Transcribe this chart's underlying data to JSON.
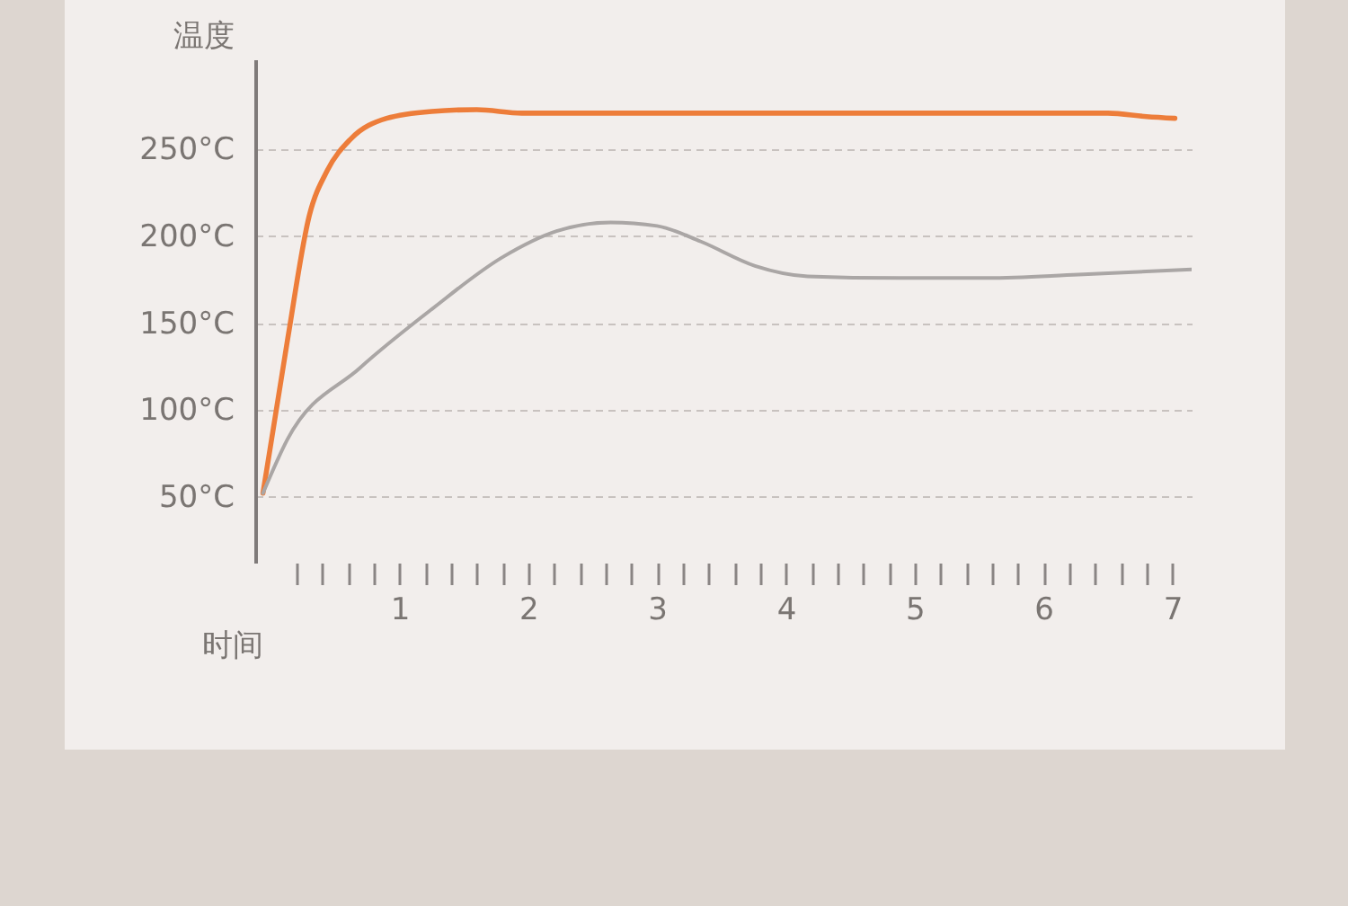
{
  "chart_data": {
    "type": "line",
    "xlabel": "时间",
    "ylabel": "温度",
    "xlim": [
      -0.12,
      7.15
    ],
    "ylim": [
      12,
      302
    ],
    "xticks": [
      {
        "value": 0.2,
        "label": null
      },
      {
        "value": 0.4,
        "label": null
      },
      {
        "value": 0.6,
        "label": null
      },
      {
        "value": 0.8,
        "label": null
      },
      1,
      {
        "value": 1.2,
        "label": null
      },
      {
        "value": 1.4,
        "label": null
      },
      {
        "value": 1.6,
        "label": null
      },
      {
        "value": 1.8,
        "label": null
      },
      2,
      {
        "value": 2.2,
        "label": null
      },
      {
        "value": 2.4,
        "label": null
      },
      {
        "value": 2.6,
        "label": null
      },
      {
        "value": 2.8,
        "label": null
      },
      3,
      {
        "value": 3.2,
        "label": null
      },
      {
        "value": 3.4,
        "label": null
      },
      {
        "value": 3.6,
        "label": null
      },
      {
        "value": 3.8,
        "label": null
      },
      4,
      {
        "value": 4.2,
        "label": null
      },
      {
        "value": 4.4,
        "label": null
      },
      {
        "value": 4.6,
        "label": null
      },
      {
        "value": 4.8,
        "label": null
      },
      5,
      {
        "value": 5.2,
        "label": null
      },
      {
        "value": 5.4,
        "label": null
      },
      {
        "value": 5.6,
        "label": null
      },
      {
        "value": 5.8,
        "label": null
      },
      6,
      {
        "value": 6.2,
        "label": null
      },
      {
        "value": 6.4,
        "label": null
      },
      {
        "value": 6.6,
        "label": null
      },
      {
        "value": 6.8,
        "label": null
      },
      7
    ],
    "yticks": [
      {
        "value": 50,
        "label": "50°C"
      },
      {
        "value": 100,
        "label": "100°C"
      },
      {
        "value": 150,
        "label": "150°C"
      },
      {
        "value": 200,
        "label": "200°C"
      },
      {
        "value": 250,
        "label": "250°C"
      }
    ],
    "grid": "y",
    "line_style": "solid",
    "series": [
      {
        "color": "#ed7d3a",
        "x": [
          -0.06,
          0.13,
          0.3,
          0.44,
          0.62,
          0.9,
          1.25,
          1.6,
          1.95,
          3.5,
          5.6,
          6.5,
          6.8,
          7.02
        ],
        "values": [
          52,
          140,
          212,
          238,
          256,
          268,
          272,
          273,
          271,
          271,
          271,
          271,
          269,
          268
        ]
      },
      {
        "color": "#aaa6a5",
        "x": [
          -0.06,
          0.13,
          0.69,
          1.25,
          1.8,
          2.22,
          2.64,
          3.0,
          3.34,
          3.76,
          4.17,
          4.87,
          5.57,
          6.27,
          7.15
        ],
        "values": [
          52,
          83,
          124,
          158,
          188,
          203,
          208,
          206,
          197,
          183,
          177,
          176,
          176,
          178,
          181
        ]
      }
    ]
  }
}
